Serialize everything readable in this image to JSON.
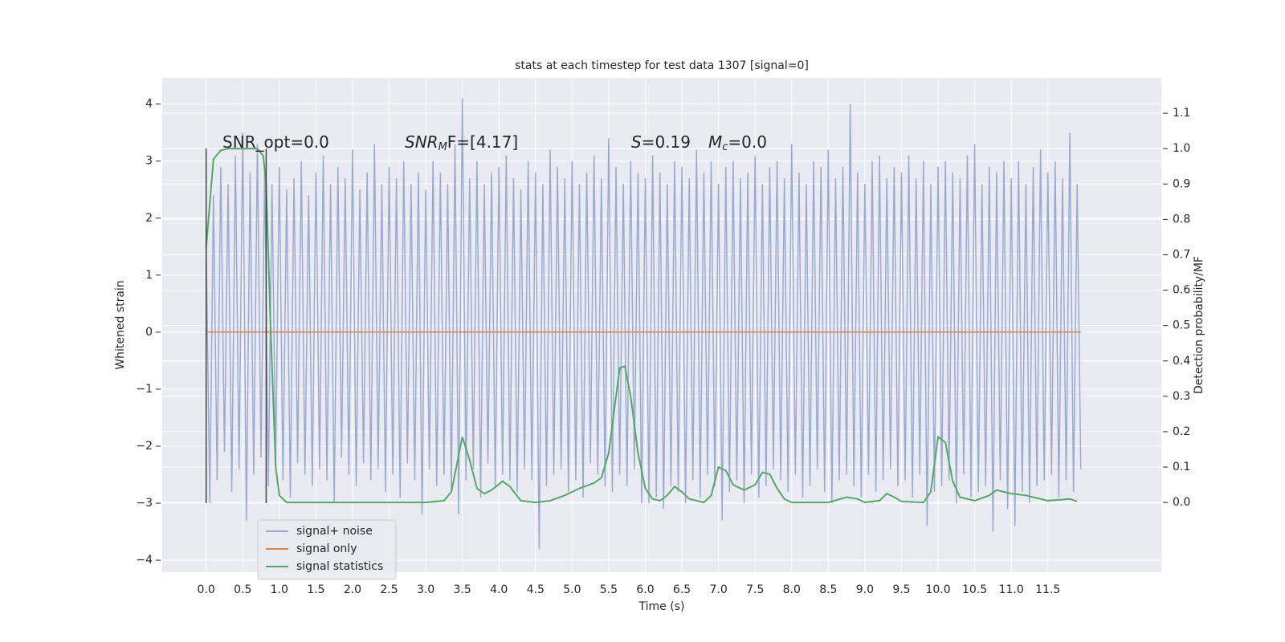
{
  "chart_data": {
    "type": "line",
    "title": "stats at each timestep for test data 1307 [signal=0]",
    "xlabel": "Time (s)",
    "ylabel": "Whitened strain",
    "y2label": "Detection probability/MF",
    "annotations": [
      {
        "text": "SNR_opt=0.0"
      },
      {
        "base": "SNR",
        "sub": "M",
        "rest": "F=[4.17]"
      },
      {
        "base": "S",
        "rest": "=0.19"
      },
      {
        "base": "M",
        "sub": "c",
        "rest": "=0.0"
      }
    ],
    "xlim": [
      -0.6,
      13.05
    ],
    "ylim": [
      -4.21,
      4.46
    ],
    "y2lim": [
      -0.197,
      1.2
    ],
    "xticks": [
      {
        "value": 0,
        "label": "0.0"
      },
      0.5,
      {
        "value": 1,
        "label": "1.0"
      },
      1.5,
      {
        "value": 2,
        "label": "2.0"
      },
      2.5,
      {
        "value": 3,
        "label": "3.0"
      },
      3.5,
      {
        "value": 4,
        "label": "4.0"
      },
      4.5,
      {
        "value": 5,
        "label": "5.0"
      },
      5.5,
      {
        "value": 6,
        "label": "6.0"
      },
      6.5,
      {
        "value": 7,
        "label": "7.0"
      },
      7.5,
      {
        "value": 8,
        "label": "8.0"
      },
      8.5,
      {
        "value": 9,
        "label": "9.0"
      },
      9.5,
      {
        "value": 10,
        "label": "10.0"
      },
      10.5,
      {
        "value": 11,
        "label": "11.0"
      },
      11.5
    ],
    "yticks": [
      {
        "value": -4,
        "label": "−4"
      },
      {
        "value": -3,
        "label": "−3"
      },
      {
        "value": -2,
        "label": "−2"
      },
      {
        "value": -1,
        "label": "−1"
      },
      0,
      1,
      2,
      3,
      4
    ],
    "y2ticks": [
      {
        "value": 0,
        "label": "0.0"
      },
      0.1,
      0.2,
      0.3,
      0.4,
      0.5,
      0.6,
      0.7,
      0.8,
      0.9,
      {
        "value": 1,
        "label": "1.0"
      },
      1.1
    ],
    "grid": true,
    "legend": "lower left",
    "markers": {
      "x": [
        0,
        0.82
      ],
      "y": [
        -3,
        3.22
      ],
      "color": "#444444"
    },
    "series": [
      {
        "name": "signal+ noise",
        "color": "#9aabd1",
        "x": [
          0,
          0.05,
          0.1,
          0.15,
          0.2,
          0.25,
          0.3,
          0.35,
          0.4,
          0.45,
          0.5,
          0.55,
          0.6,
          0.65,
          0.7,
          0.75,
          0.8,
          0.85,
          0.9,
          0.95,
          1,
          1.05,
          1.1,
          1.15,
          1.2,
          1.25,
          1.3,
          1.35,
          1.4,
          1.45,
          1.5,
          1.55,
          1.6,
          1.65,
          1.7,
          1.75,
          1.8,
          1.85,
          1.9,
          1.95,
          2,
          2.05,
          2.1,
          2.15,
          2.2,
          2.25,
          2.3,
          2.35,
          2.4,
          2.45,
          2.5,
          2.55,
          2.6,
          2.65,
          2.7,
          2.75,
          2.8,
          2.85,
          2.9,
          2.95,
          3,
          3.05,
          3.1,
          3.15,
          3.2,
          3.25,
          3.3,
          3.35,
          3.4,
          3.45,
          3.5,
          3.55,
          3.6,
          3.65,
          3.7,
          3.75,
          3.8,
          3.85,
          3.9,
          3.95,
          4,
          4.05,
          4.1,
          4.15,
          4.2,
          4.25,
          4.3,
          4.35,
          4.4,
          4.45,
          4.5,
          4.55,
          4.6,
          4.65,
          4.7,
          4.75,
          4.8,
          4.85,
          4.9,
          4.95,
          5,
          5.05,
          5.1,
          5.15,
          5.2,
          5.25,
          5.3,
          5.35,
          5.4,
          5.45,
          5.5,
          5.55,
          5.6,
          5.65,
          5.7,
          5.75,
          5.8,
          5.85,
          5.9,
          5.95,
          6,
          6.05,
          6.1,
          6.15,
          6.2,
          6.25,
          6.3,
          6.35,
          6.4,
          6.45,
          6.5,
          6.55,
          6.6,
          6.65,
          6.7,
          6.75,
          6.8,
          6.85,
          6.9,
          6.95,
          7,
          7.05,
          7.1,
          7.15,
          7.2,
          7.25,
          7.3,
          7.35,
          7.4,
          7.45,
          7.5,
          7.55,
          7.6,
          7.65,
          7.7,
          7.75,
          7.8,
          7.85,
          7.9,
          7.95,
          8,
          8.05,
          8.1,
          8.15,
          8.2,
          8.25,
          8.3,
          8.35,
          8.4,
          8.45,
          8.5,
          8.55,
          8.6,
          8.65,
          8.7,
          8.75,
          8.8,
          8.85,
          8.9,
          8.95,
          9,
          9.05,
          9.1,
          9.15,
          9.2,
          9.25,
          9.3,
          9.35,
          9.4,
          9.45,
          9.5,
          9.55,
          9.6,
          9.65,
          9.7,
          9.75,
          9.8,
          9.85,
          9.9,
          9.95,
          10,
          10.05,
          10.1,
          10.15,
          10.2,
          10.25,
          10.3,
          10.35,
          10.4,
          10.45,
          10.5,
          10.55,
          10.6,
          10.65,
          10.7,
          10.75,
          10.8,
          10.85,
          10.9,
          10.95,
          11,
          11.05,
          11.1,
          11.15,
          11.2,
          11.25,
          11.3,
          11.35,
          11.4,
          11.45,
          11.5,
          11.55,
          11.6,
          11.65,
          11.7,
          11.75,
          11.8,
          11.85,
          11.9,
          11.95
        ],
        "values": [
          1.6,
          -3.0,
          2.4,
          -2.6,
          2.9,
          -2.1,
          2.6,
          -2.8,
          3.1,
          -2.4,
          3.5,
          -3.3,
          2.8,
          -2.5,
          3.3,
          -2.2,
          2.9,
          -2.7,
          2.6,
          -2.3,
          2.9,
          -2.6,
          2.5,
          -2.9,
          2.7,
          -2.3,
          3.0,
          -2.5,
          2.4,
          -2.7,
          2.8,
          -2.4,
          3.1,
          -2.6,
          2.6,
          -3.0,
          2.9,
          -2.2,
          2.7,
          -2.5,
          3.2,
          -2.7,
          2.5,
          -2.3,
          2.8,
          -2.6,
          3.3,
          -2.4,
          2.6,
          -2.8,
          2.9,
          -2.5,
          2.7,
          -2.9,
          3.0,
          -2.3,
          2.6,
          -2.6,
          2.8,
          -3.2,
          2.5,
          -2.4,
          3.0,
          -2.7,
          2.8,
          -2.5,
          2.6,
          -2.8,
          3.3,
          -3.2,
          4.1,
          -2.6,
          2.7,
          -2.4,
          3.0,
          -2.9,
          2.6,
          -2.3,
          2.8,
          -2.7,
          2.9,
          -2.5,
          3.1,
          -2.6,
          2.7,
          -2.8,
          2.5,
          -2.4,
          3.0,
          -2.6,
          2.8,
          -3.8,
          2.6,
          -2.7,
          3.2,
          -2.5,
          2.9,
          -2.4,
          2.7,
          -2.8,
          3.0,
          -2.6,
          2.6,
          -2.9,
          2.8,
          -2.3,
          3.1,
          -2.5,
          2.7,
          -2.7,
          3.4,
          -2.8,
          2.9,
          -2.5,
          2.6,
          -2.7,
          3.0,
          -2.4,
          2.8,
          -3.0,
          2.7,
          -3.0,
          3.1,
          -2.9,
          2.8,
          -3.1,
          2.6,
          -2.7,
          3.0,
          -2.8,
          2.9,
          -3.0,
          2.7,
          -2.6,
          3.2,
          -2.9,
          2.8,
          -2.5,
          3.0,
          -2.7,
          2.6,
          -3.3,
          2.9,
          -2.8,
          3.0,
          -2.6,
          2.7,
          -3.0,
          2.8,
          -2.5,
          3.1,
          -2.9,
          2.6,
          -2.7,
          2.9,
          -2.4,
          3.0,
          -2.6,
          2.7,
          -2.8,
          3.3,
          -2.5,
          2.8,
          -2.9,
          2.6,
          -2.7,
          3.0,
          -2.4,
          2.9,
          -2.8,
          3.2,
          -3.0,
          2.7,
          -2.6,
          2.9,
          -2.5,
          4.0,
          -2.7,
          2.8,
          -2.9,
          2.6,
          -2.5,
          3.0,
          -2.8,
          3.1,
          -2.6,
          2.7,
          -2.4,
          2.9,
          -2.7,
          2.8,
          -2.6,
          3.1,
          -2.9,
          2.7,
          -2.5,
          3.0,
          -3.4,
          2.6,
          -2.8,
          2.9,
          -2.7,
          3.0,
          -2.6,
          2.8,
          -3.0,
          2.7,
          -2.5,
          3.1,
          -2.9,
          3.3,
          -2.8,
          2.6,
          -2.7,
          2.9,
          -3.5,
          2.8,
          -2.6,
          3.0,
          -3.1,
          2.7,
          -3.4,
          3.0,
          -2.8,
          2.6,
          -3.0,
          2.9,
          -2.7,
          3.2,
          -2.6,
          2.8,
          -2.5,
          3.0,
          -2.9,
          2.7,
          -2.6,
          3.5,
          -2.8,
          2.6,
          -2.4
        ]
      },
      {
        "name": "signal only",
        "color": "#dd8452",
        "x": [
          0,
          11.95
        ],
        "values": [
          0,
          0
        ]
      },
      {
        "name": "signal statistics",
        "color": "#55a868",
        "axis": "y2",
        "x": [
          0,
          0.1,
          0.2,
          0.3,
          0.5,
          0.7,
          0.78,
          0.82,
          0.88,
          0.95,
          1.0,
          1.1,
          1.5,
          2.0,
          2.5,
          3.0,
          3.25,
          3.35,
          3.5,
          3.6,
          3.7,
          3.8,
          3.9,
          4.05,
          4.15,
          4.3,
          4.5,
          4.7,
          4.9,
          5.1,
          5.3,
          5.4,
          5.5,
          5.6,
          5.65,
          5.72,
          5.8,
          5.9,
          6.0,
          6.1,
          6.2,
          6.3,
          6.4,
          6.5,
          6.6,
          6.8,
          6.9,
          7.0,
          7.1,
          7.2,
          7.35,
          7.5,
          7.6,
          7.7,
          7.8,
          7.9,
          8.0,
          8.5,
          8.75,
          8.9,
          9.0,
          9.2,
          9.3,
          9.4,
          9.5,
          9.8,
          9.9,
          10.0,
          10.1,
          10.2,
          10.3,
          10.5,
          10.7,
          10.8,
          11.0,
          11.2,
          11.5,
          11.8,
          11.9
        ],
        "values": [
          0.72,
          0.97,
          0.995,
          1.0,
          1.0,
          1.0,
          0.98,
          0.9,
          0.5,
          0.1,
          0.02,
          0.0,
          0.0,
          0.0,
          0.0,
          0.0,
          0.005,
          0.03,
          0.185,
          0.12,
          0.04,
          0.025,
          0.035,
          0.06,
          0.045,
          0.005,
          0.0,
          0.005,
          0.02,
          0.04,
          0.055,
          0.07,
          0.14,
          0.3,
          0.38,
          0.385,
          0.3,
          0.14,
          0.04,
          0.01,
          0.005,
          0.02,
          0.045,
          0.03,
          0.01,
          0.0,
          0.02,
          0.1,
          0.09,
          0.05,
          0.035,
          0.05,
          0.085,
          0.08,
          0.04,
          0.01,
          0.0,
          0.0,
          0.015,
          0.01,
          0.0,
          0.005,
          0.025,
          0.015,
          0.003,
          0.0,
          0.03,
          0.185,
          0.17,
          0.06,
          0.015,
          0.005,
          0.02,
          0.035,
          0.025,
          0.02,
          0.005,
          0.01,
          0.003
        ]
      }
    ]
  }
}
